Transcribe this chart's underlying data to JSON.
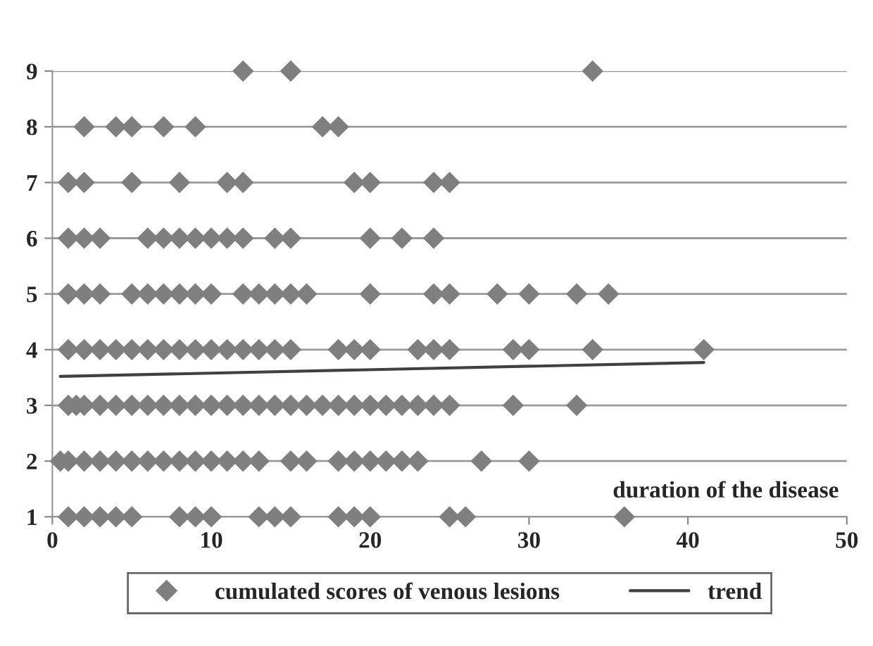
{
  "chart_data": {
    "type": "scatter",
    "xlabel": "duration of the disease",
    "xlim": [
      0,
      50
    ],
    "ylim": [
      1,
      9
    ],
    "xticks": [
      0,
      10,
      20,
      30,
      40,
      50
    ],
    "yticks": [
      1,
      2,
      3,
      4,
      5,
      6,
      7,
      8,
      9
    ],
    "grid": "y",
    "legend": "bottom",
    "series": [
      {
        "name": "cumulated scores of venous lesions",
        "marker": "diamond",
        "color": "#7f7f7f",
        "x": [
          12,
          15,
          34,
          2,
          4,
          5,
          7,
          9,
          17,
          18,
          1,
          2,
          5,
          8,
          11,
          12,
          19,
          20,
          24,
          25,
          1,
          2,
          3,
          6,
          7,
          8,
          9,
          10,
          11,
          12,
          14,
          15,
          20,
          22,
          24,
          1,
          2,
          3,
          5,
          6,
          7,
          8,
          9,
          10,
          12,
          13,
          14,
          15,
          16,
          20,
          24,
          25,
          28,
          30,
          33,
          35,
          1,
          2,
          3,
          4,
          5,
          6,
          7,
          8,
          9,
          10,
          11,
          12,
          13,
          14,
          15,
          18,
          19,
          20,
          23,
          24,
          25,
          29,
          30,
          34,
          41,
          1,
          1.5,
          2,
          3,
          4,
          5,
          6,
          7,
          8,
          9,
          10,
          11,
          12,
          13,
          14,
          15,
          16,
          17,
          18,
          19,
          20,
          21,
          22,
          23,
          24,
          25,
          29,
          33,
          0.5,
          1,
          2,
          3,
          4,
          5,
          6,
          7,
          8,
          9,
          10,
          11,
          12,
          13,
          15,
          16,
          18,
          19,
          20,
          21,
          22,
          23,
          27,
          30,
          1,
          2,
          3,
          4,
          5,
          8,
          9,
          10,
          13,
          14,
          15,
          18,
          19,
          20,
          25,
          26,
          36
        ],
        "values": [
          9,
          9,
          9,
          8,
          8,
          8,
          8,
          8,
          8,
          8,
          7,
          7,
          7,
          7,
          7,
          7,
          7,
          7,
          7,
          7,
          6,
          6,
          6,
          6,
          6,
          6,
          6,
          6,
          6,
          6,
          6,
          6,
          6,
          6,
          6,
          5,
          5,
          5,
          5,
          5,
          5,
          5,
          5,
          5,
          5,
          5,
          5,
          5,
          5,
          5,
          5,
          5,
          5,
          5,
          5,
          5,
          4,
          4,
          4,
          4,
          4,
          4,
          4,
          4,
          4,
          4,
          4,
          4,
          4,
          4,
          4,
          4,
          4,
          4,
          4,
          4,
          4,
          4,
          4,
          4,
          4,
          3,
          3,
          3,
          3,
          3,
          3,
          3,
          3,
          3,
          3,
          3,
          3,
          3,
          3,
          3,
          3,
          3,
          3,
          3,
          3,
          3,
          3,
          3,
          3,
          3,
          3,
          3,
          3,
          2,
          2,
          2,
          2,
          2,
          2,
          2,
          2,
          2,
          2,
          2,
          2,
          2,
          2,
          2,
          2,
          2,
          2,
          2,
          2,
          2,
          2,
          2,
          2,
          1,
          1,
          1,
          1,
          1,
          1,
          1,
          1,
          1,
          1,
          1,
          1,
          1,
          1,
          1,
          1,
          1
        ]
      },
      {
        "name": "trend",
        "type": "line",
        "color": "#404040",
        "x": [
          0.5,
          41
        ],
        "values": [
          3.52,
          3.77
        ]
      }
    ]
  }
}
